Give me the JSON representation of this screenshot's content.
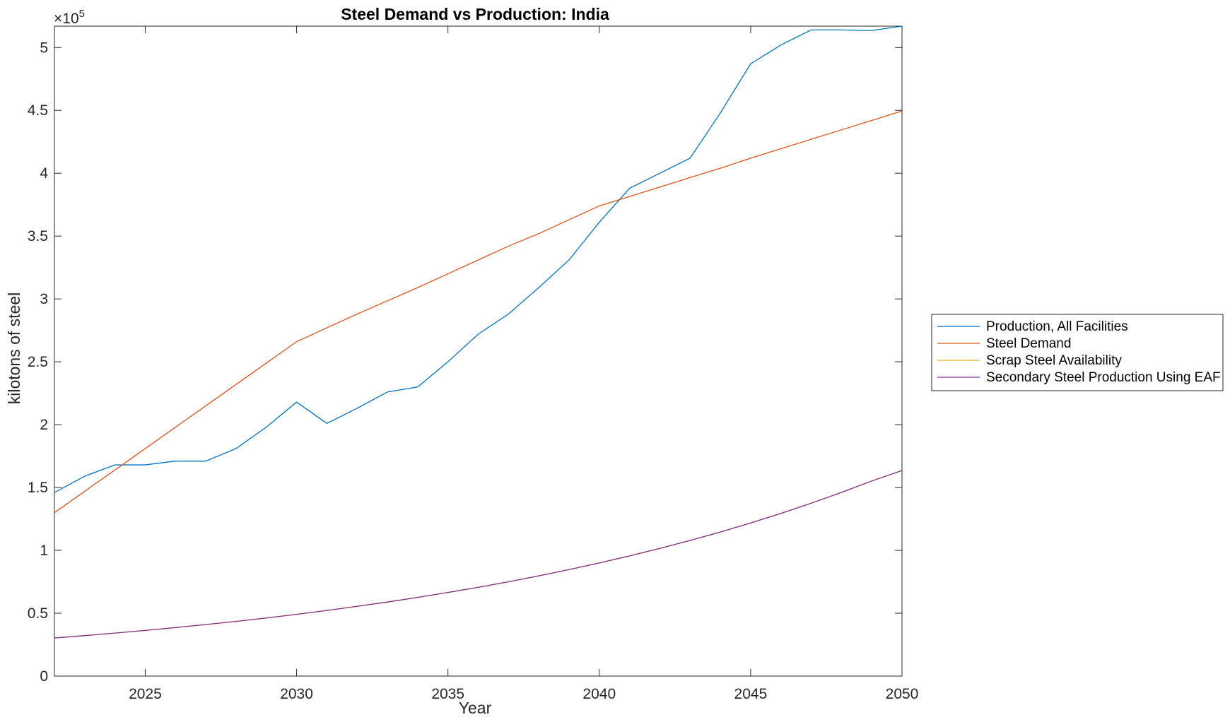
{
  "chart_data": {
    "type": "line",
    "title": "Steel Demand vs Production: India",
    "xlabel": "Year",
    "ylabel": "kilotons of steel",
    "y_exponent_label": "×10",
    "y_exponent_power": "5",
    "xlim": [
      2022,
      2050
    ],
    "ylim": [
      0,
      517000
    ],
    "xticks": [
      2025,
      2030,
      2035,
      2040,
      2045,
      2050
    ],
    "xtick_labels": [
      "2025",
      "2030",
      "2035",
      "2040",
      "2045",
      "2050"
    ],
    "yticks": [
      0,
      50000,
      100000,
      150000,
      200000,
      250000,
      300000,
      350000,
      400000,
      450000,
      500000
    ],
    "ytick_labels": [
      "0",
      "0.5",
      "1",
      "1.5",
      "2",
      "2.5",
      "3",
      "3.5",
      "4",
      "4.5",
      "5"
    ],
    "grid": false,
    "legend_position": "outside-right",
    "x": [
      2022,
      2023,
      2024,
      2025,
      2026,
      2027,
      2028,
      2029,
      2030,
      2031,
      2032,
      2033,
      2034,
      2035,
      2036,
      2037,
      2038,
      2039,
      2040,
      2041,
      2042,
      2043,
      2044,
      2045,
      2046,
      2047,
      2048,
      2049,
      2050
    ],
    "series": [
      {
        "name": "Production, All Facilities",
        "color": "#0072BD",
        "values": [
          146000,
          159000,
          168000,
          168000,
          171000,
          171000,
          181000,
          198000,
          218000,
          201000,
          213000,
          226000,
          230000,
          250000,
          272000,
          288000,
          309000,
          331000,
          361000,
          388000,
          400000,
          412000,
          448000,
          487000,
          502000,
          514000,
          514000,
          513500,
          517000
        ]
      },
      {
        "name": "Steel Demand",
        "color": "#D95319",
        "values": [
          130000,
          147000,
          164000,
          181000,
          198000,
          215000,
          232000,
          249000,
          266000,
          277000,
          288000,
          298500,
          309000,
          320000,
          331000,
          342000,
          352000,
          363000,
          374000,
          381500,
          389000,
          396500,
          404000,
          412000,
          419500,
          427000,
          434500,
          442000,
          449500
        ]
      },
      {
        "name": "Scrap Steel Availability",
        "color": "#EDB120",
        "values": [
          30300,
          32200,
          34200,
          36300,
          38600,
          41000,
          43500,
          46200,
          49100,
          52200,
          55500,
          58900,
          62600,
          66500,
          70600,
          75000,
          79700,
          84700,
          90000,
          95600,
          101600,
          107900,
          114600,
          121800,
          129400,
          137500,
          146100,
          155200,
          163500
        ]
      },
      {
        "name": "Secondary Steel Production Using EAF",
        "color": "#7E2F8E",
        "values": [
          30300,
          32200,
          34200,
          36300,
          38600,
          41000,
          43500,
          46200,
          49100,
          52200,
          55500,
          58900,
          62600,
          66500,
          70600,
          75000,
          79700,
          84700,
          90000,
          95600,
          101600,
          107900,
          114600,
          121800,
          129400,
          137500,
          146100,
          155200,
          163500
        ]
      }
    ]
  }
}
